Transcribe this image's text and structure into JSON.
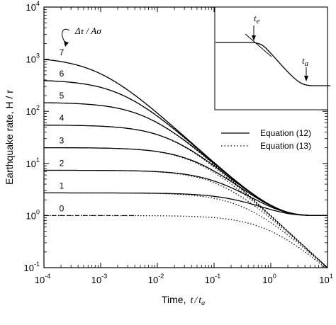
{
  "chart_data": {
    "type": "line",
    "xlabel_prefix": "Time,",
    "xlabel_var": "t",
    "xlabel_sub": "a",
    "ylabel": "Earthquake rate, H / r",
    "x_scale": "log",
    "y_scale": "log",
    "xlim": [
      0.0001,
      10
    ],
    "ylim": [
      0.1,
      10000
    ],
    "x_ticks": [
      {
        "value": 0.0001,
        "base": "10",
        "exp": "-4"
      },
      {
        "value": 0.001,
        "base": "10",
        "exp": "-3"
      },
      {
        "value": 0.01,
        "base": "10",
        "exp": "-2"
      },
      {
        "value": 0.1,
        "base": "10",
        "exp": "-1"
      },
      {
        "value": 1,
        "base": "10",
        "exp": "0"
      },
      {
        "value": 10,
        "base": "10",
        "exp": "1"
      }
    ],
    "y_ticks": [
      {
        "value": 0.1,
        "base": "10",
        "exp": "-1"
      },
      {
        "value": 1,
        "base": "10",
        "exp": "0"
      },
      {
        "value": 10,
        "base": "10",
        "exp": "1"
      },
      {
        "value": 100,
        "base": "10",
        "exp": "2"
      },
      {
        "value": 1000,
        "base": "10",
        "exp": "3"
      },
      {
        "value": 10000,
        "base": "10",
        "exp": "4"
      }
    ],
    "series_param_label": "Δτ / Aσ",
    "curves": [
      {
        "label": "0",
        "value": 0
      },
      {
        "label": "1",
        "value": 1
      },
      {
        "label": "2",
        "value": 2
      },
      {
        "label": "3",
        "value": 3
      },
      {
        "label": "4",
        "value": 4
      },
      {
        "label": "5",
        "value": 5
      },
      {
        "label": "6",
        "value": 6
      },
      {
        "label": "7",
        "value": 7
      }
    ],
    "legend": [
      {
        "label": "Equation (12)",
        "style": "solid"
      },
      {
        "label": "Equation (13)",
        "style": "dotted"
      }
    ],
    "legend_position": "right-middle",
    "inset": {
      "label_te": "t",
      "label_te_sub": "e",
      "label_ta": "t",
      "label_ta_sub": "a"
    },
    "grid": false
  }
}
